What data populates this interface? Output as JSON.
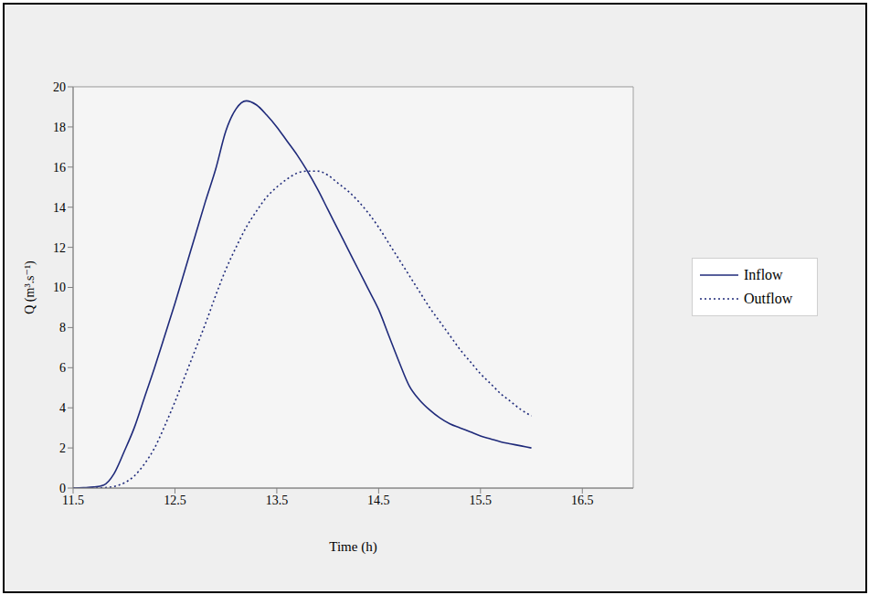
{
  "chart_data": {
    "type": "line",
    "x_label": "Time (h)",
    "y_label": "Q (m³.s⁻¹)",
    "x": [
      11.5,
      11.6,
      11.7,
      11.8,
      11.9,
      12.0,
      12.1,
      12.2,
      12.3,
      12.4,
      12.5,
      12.6,
      12.7,
      12.8,
      12.9,
      13.0,
      13.1,
      13.2,
      13.3,
      13.4,
      13.5,
      13.6,
      13.7,
      13.8,
      13.9,
      14.0,
      14.1,
      14.2,
      14.3,
      14.4,
      14.5,
      14.6,
      14.7,
      14.8,
      14.9,
      15.0,
      15.1,
      15.2,
      15.3,
      15.4,
      15.5,
      15.6,
      15.7,
      15.8,
      15.9,
      16.0
    ],
    "series": [
      {
        "name": "Inflow",
        "color": "#1f2a7a",
        "line_style": "solid",
        "values": [
          0,
          0.02,
          0.05,
          0.15,
          0.7,
          1.8,
          3.0,
          4.5,
          6.0,
          7.6,
          9.2,
          10.9,
          12.6,
          14.3,
          15.9,
          17.8,
          18.9,
          19.3,
          19.1,
          18.6,
          18.0,
          17.3,
          16.6,
          15.8,
          14.9,
          13.9,
          12.9,
          11.9,
          10.9,
          9.9,
          8.9,
          7.6,
          6.3,
          5.1,
          4.4,
          3.9,
          3.5,
          3.2,
          3.0,
          2.8,
          2.6,
          2.45,
          2.3,
          2.2,
          2.1,
          2.0
        ]
      },
      {
        "name": "Outflow",
        "color": "#1f2a7a",
        "line_style": "dotted",
        "values": [
          0,
          0,
          0,
          0.02,
          0.08,
          0.25,
          0.6,
          1.2,
          2.0,
          3.1,
          4.3,
          5.6,
          6.9,
          8.2,
          9.6,
          10.9,
          12.0,
          13.0,
          13.8,
          14.5,
          15.0,
          15.4,
          15.7,
          15.8,
          15.8,
          15.6,
          15.2,
          14.8,
          14.3,
          13.7,
          13.0,
          12.2,
          11.4,
          10.6,
          9.8,
          9.0,
          8.3,
          7.6,
          6.9,
          6.3,
          5.7,
          5.2,
          4.7,
          4.3,
          3.9,
          3.6
        ]
      }
    ],
    "xlim": [
      11.5,
      17
    ],
    "xticks": [
      11.5,
      12.5,
      13.5,
      14.5,
      15.5,
      16.5
    ],
    "ylim": [
      0,
      20
    ],
    "yticks": [
      0,
      2,
      4,
      6,
      8,
      10,
      12,
      14,
      16,
      18,
      20
    ],
    "grid": true,
    "legend": "right"
  }
}
